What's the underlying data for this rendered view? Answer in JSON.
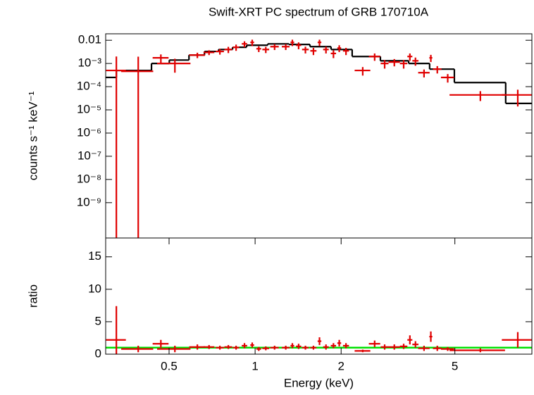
{
  "chart_data": [
    {
      "type": "errorbar",
      "title": "Swift-XRT PC spectrum of GRB 170710A",
      "ylabel": "counts s⁻¹ keV⁻¹",
      "log_x": true,
      "log_y": true,
      "xlim": [
        0.3,
        9.3
      ],
      "ylim": [
        3e-11,
        0.019
      ],
      "yticks": [
        0.01,
        {
          "value": 0.001,
          "label": "10⁻³"
        },
        {
          "value": 0.0001,
          "label": "10⁻⁴"
        },
        {
          "value": 1e-05,
          "label": "10⁻⁵"
        },
        {
          "value": 1e-06,
          "label": "10⁻⁶"
        },
        {
          "value": 1e-07,
          "label": "10⁻⁷"
        },
        {
          "value": 1e-08,
          "label": "10⁻⁸"
        },
        {
          "value": 1e-09,
          "label": "10⁻⁹"
        }
      ],
      "color": "#e00000",
      "x": [
        0.327,
        0.39,
        0.468,
        0.524,
        0.628,
        0.69,
        0.753,
        0.806,
        0.858,
        0.918,
        0.977,
        1.03,
        1.09,
        1.17,
        1.28,
        1.35,
        1.42,
        1.5,
        1.6,
        1.68,
        1.77,
        1.88,
        1.97,
        2.08,
        2.38,
        2.62,
        2.84,
        3.07,
        3.31,
        3.48,
        3.64,
        3.9,
        4.12,
        4.34,
        4.72,
        6.14,
        8.3
      ],
      "xerr": [
        0.026,
        0.05,
        0.03,
        0.07,
        0.04,
        0.03,
        0.025,
        0.025,
        0.022,
        0.02,
        0.015,
        0.02,
        0.03,
        0.04,
        0.04,
        0.02,
        0.03,
        0.04,
        0.04,
        0.025,
        0.04,
        0.04,
        0.03,
        0.05,
        0.15,
        0.12,
        0.09,
        0.14,
        0.1,
        0.07,
        0.09,
        0.18,
        0.05,
        0.15,
        0.25,
        1.35,
        1.0
      ],
      "values": [
        0.0005,
        0.00046,
        0.00175,
        0.001,
        0.0023,
        0.003,
        0.0033,
        0.004,
        0.005,
        0.007,
        0.0081,
        0.0043,
        0.004,
        0.0053,
        0.0053,
        0.0081,
        0.0061,
        0.004,
        0.0035,
        0.0081,
        0.004,
        0.0027,
        0.0046,
        0.0035,
        0.0005,
        0.002,
        0.001,
        0.00115,
        0.001,
        0.002,
        0.0013,
        0.0004,
        0.00175,
        0.00057,
        0.00025,
        4.4e-05,
        4.4e-05
      ],
      "yerr": [
        0.0015,
        0.0015,
        0.0007,
        0.0006,
        0.0006,
        0.0007,
        0.0009,
        0.0012,
        0.0015,
        0.002,
        0.0025,
        0.0012,
        0.0012,
        0.0015,
        0.0015,
        0.0025,
        0.002,
        0.0013,
        0.0012,
        0.0025,
        0.0013,
        0.001,
        0.0015,
        0.0012,
        0.0002,
        0.0007,
        0.0004,
        0.0004,
        0.0004,
        0.0007,
        0.0005,
        0.00015,
        0.0006,
        0.0002,
        0.0001,
        2e-05,
        3e-05
      ],
      "model": {
        "color": "#000000",
        "bins": [
          0.3,
          0.327,
          0.434,
          0.501,
          0.587,
          0.665,
          0.745,
          0.834,
          0.934,
          1.107,
          1.313,
          1.556,
          1.844,
          2.186,
          2.744,
          3.446,
          4.08,
          4.98,
          7.53,
          9.29
        ],
        "values": [
          0.00025,
          0.0005,
          0.001,
          0.0014,
          0.0023,
          0.0033,
          0.004,
          0.005,
          0.0061,
          0.007,
          0.0066,
          0.0053,
          0.004,
          0.002,
          0.0013,
          0.001,
          0.00057,
          0.00015,
          1.9e-05
        ]
      }
    },
    {
      "type": "errorbar",
      "ylabel": "ratio",
      "xlabel": "Energy (keV)",
      "log_x": true,
      "log_y": false,
      "xlim": [
        0.3,
        9.3
      ],
      "ylim": [
        0,
        17.9
      ],
      "xticks": [
        0.5,
        1,
        2,
        5
      ],
      "yticks": [
        0,
        5,
        10,
        15
      ],
      "color": "#e00000",
      "x": [
        0.327,
        0.39,
        0.468,
        0.524,
        0.628,
        0.69,
        0.753,
        0.806,
        0.858,
        0.918,
        0.977,
        1.03,
        1.09,
        1.17,
        1.28,
        1.35,
        1.42,
        1.5,
        1.6,
        1.68,
        1.77,
        1.88,
        1.97,
        2.08,
        2.38,
        2.62,
        2.84,
        3.07,
        3.31,
        3.48,
        3.64,
        3.9,
        4.12,
        4.34,
        4.72,
        6.14,
        8.3
      ],
      "xerr": [
        0.026,
        0.05,
        0.03,
        0.07,
        0.04,
        0.03,
        0.025,
        0.025,
        0.022,
        0.02,
        0.015,
        0.02,
        0.03,
        0.04,
        0.04,
        0.02,
        0.03,
        0.04,
        0.04,
        0.025,
        0.04,
        0.04,
        0.03,
        0.05,
        0.15,
        0.12,
        0.09,
        0.14,
        0.1,
        0.07,
        0.09,
        0.18,
        0.05,
        0.15,
        0.25,
        1.35,
        1.0
      ],
      "values": [
        2.2,
        0.8,
        1.6,
        0.8,
        1.1,
        1.1,
        1.0,
        1.1,
        1.0,
        1.3,
        1.4,
        0.8,
        0.9,
        1.0,
        1.0,
        1.3,
        1.2,
        1.0,
        1.0,
        2.0,
        1.1,
        1.3,
        1.7,
        1.3,
        0.5,
        1.6,
        1.1,
        1.1,
        1.2,
        2.2,
        1.5,
        0.9,
        2.7,
        0.9,
        0.8,
        0.6,
        2.2
      ],
      "yerr": [
        5.2,
        0.5,
        0.6,
        0.5,
        0.4,
        0.3,
        0.3,
        0.3,
        0.3,
        0.4,
        0.4,
        0.3,
        0.3,
        0.3,
        0.3,
        0.4,
        0.4,
        0.3,
        0.3,
        0.6,
        0.4,
        0.4,
        0.5,
        0.4,
        0.2,
        0.5,
        0.4,
        0.4,
        0.4,
        0.7,
        0.5,
        0.4,
        0.8,
        0.4,
        0.3,
        0.3,
        1.2
      ],
      "reference_line": {
        "value": 1,
        "color": "#00e000"
      }
    }
  ]
}
